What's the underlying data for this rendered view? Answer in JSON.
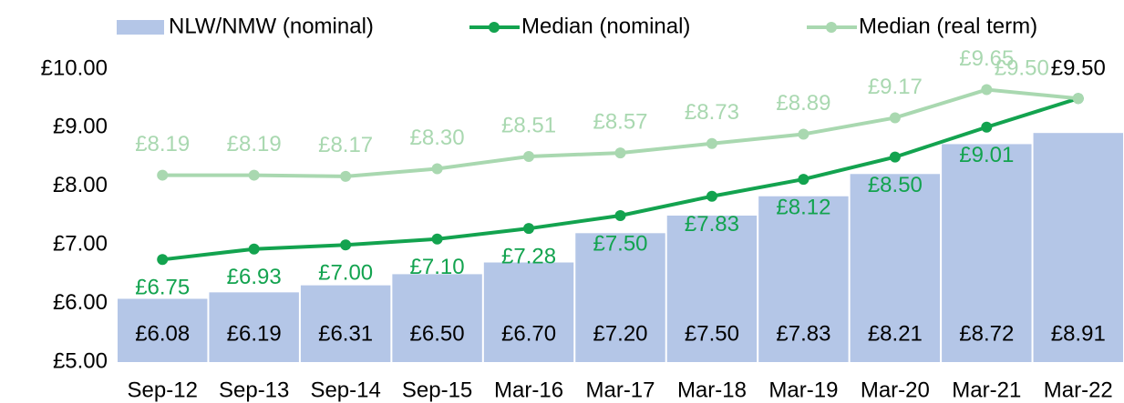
{
  "chart_data": {
    "type": "bar_line",
    "categories": [
      "Sep-12",
      "Sep-13",
      "Sep-14",
      "Sep-15",
      "Mar-16",
      "Mar-17",
      "Mar-18",
      "Mar-19",
      "Mar-20",
      "Mar-21",
      "Mar-22"
    ],
    "series": [
      {
        "name": "NLW/NMW (nominal)",
        "type": "bar",
        "color": "#b4c6e7",
        "values": [
          6.08,
          6.19,
          6.31,
          6.5,
          6.7,
          7.2,
          7.5,
          7.83,
          8.21,
          8.72,
          8.91
        ],
        "value_labels": [
          "£6.08",
          "£6.19",
          "£6.31",
          "£6.50",
          "£6.70",
          "£7.20",
          "£7.50",
          "£7.83",
          "£8.21",
          "£8.72",
          "£8.91"
        ]
      },
      {
        "name": "Median (nominal)",
        "type": "line",
        "color": "#13a34f",
        "values": [
          6.75,
          6.93,
          7.0,
          7.1,
          7.28,
          7.5,
          7.83,
          8.12,
          8.5,
          9.01,
          9.5
        ],
        "value_labels": [
          "£6.75",
          "£6.93",
          "£7.00",
          "£7.10",
          "£7.28",
          "£7.50",
          "£7.83",
          "£8.12",
          "£8.50",
          "£9.01",
          "£9.50"
        ]
      },
      {
        "name": "Median (real term)",
        "type": "line",
        "color": "#a9d8b0",
        "values": [
          8.19,
          8.19,
          8.17,
          8.3,
          8.51,
          8.57,
          8.73,
          8.89,
          9.17,
          9.65,
          9.5
        ],
        "value_labels": [
          "£8.19",
          "£8.19",
          "£8.17",
          "£8.30",
          "£8.51",
          "£8.57",
          "£8.73",
          "£8.89",
          "£9.17",
          "£9.65",
          "£9.50"
        ]
      }
    ],
    "ylim": [
      5,
      10
    ],
    "yticks": [
      {
        "value": 5,
        "label": "£5.00"
      },
      {
        "value": 6,
        "label": "£6.00"
      },
      {
        "value": 7,
        "label": "£7.00"
      },
      {
        "value": 8,
        "label": "£8.00"
      },
      {
        "value": 9,
        "label": "£9.00"
      },
      {
        "value": 10,
        "label": "£10.00"
      }
    ],
    "legend": "top",
    "grid": false
  }
}
